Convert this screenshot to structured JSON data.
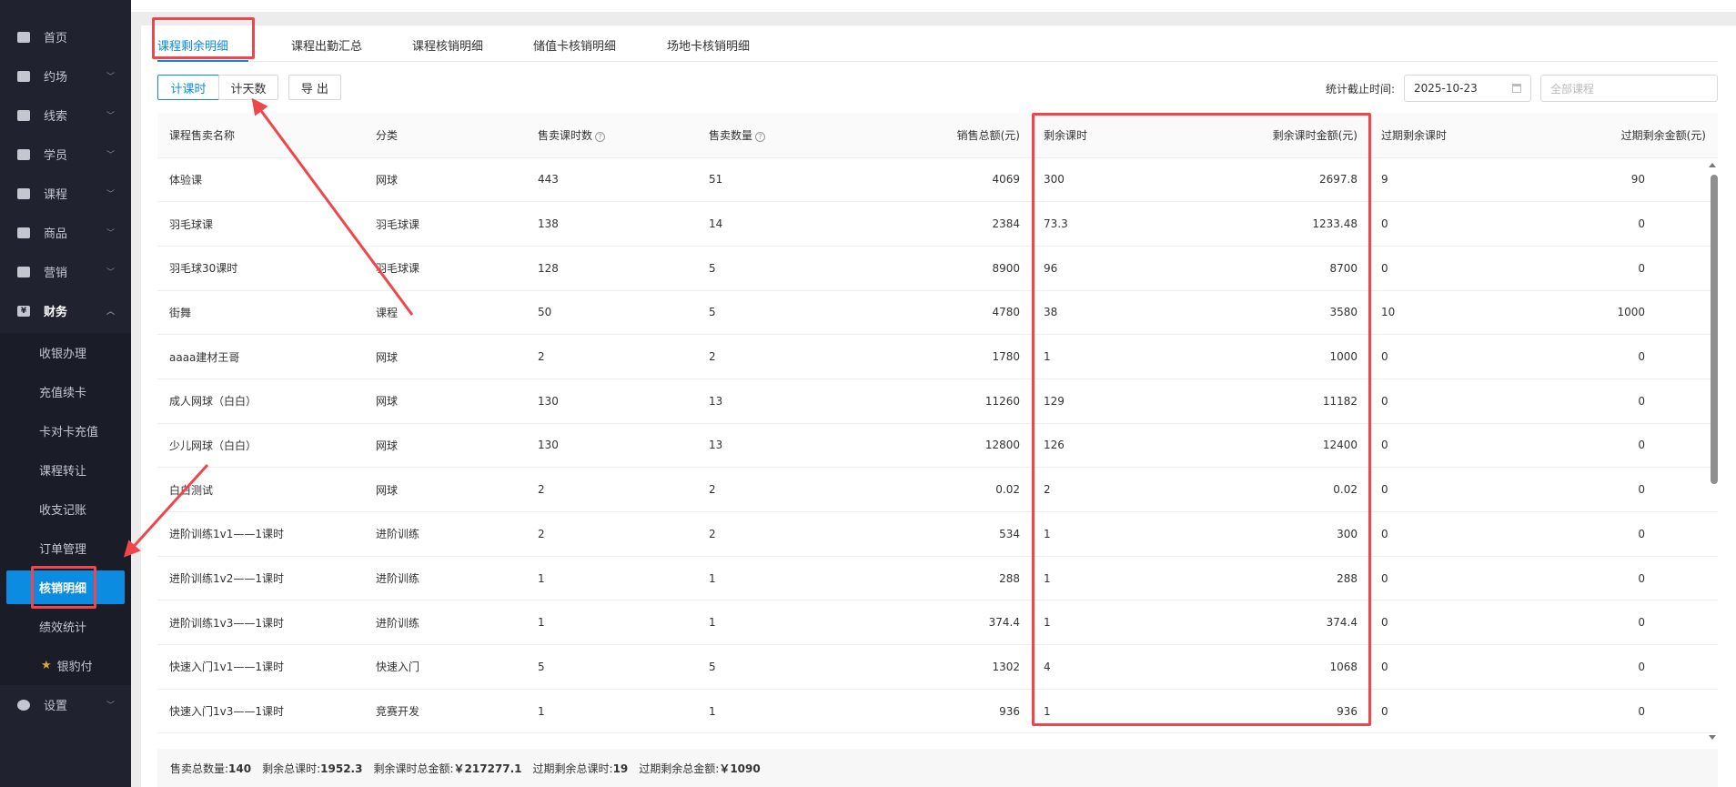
{
  "sidebar": {
    "items": [
      {
        "label": "首页",
        "icon": "home-icon"
      },
      {
        "label": "约场",
        "icon": "calendar-icon"
      },
      {
        "label": "线索",
        "icon": "users-icon"
      },
      {
        "label": "学员",
        "icon": "student-icon"
      },
      {
        "label": "课程",
        "icon": "book-icon"
      },
      {
        "label": "商品",
        "icon": "bag-icon"
      },
      {
        "label": "营销",
        "icon": "ticket-icon"
      },
      {
        "label": "财务",
        "icon": "yen-icon",
        "expanded": true
      }
    ],
    "finance_sub": [
      "收银办理",
      "充值续卡",
      "卡对卡充值",
      "课程转让",
      "收支记账",
      "订单管理",
      "核销明细",
      "绩效统计",
      "银豹付"
    ],
    "active_sub": "核销明细",
    "settings": {
      "label": "设置",
      "icon": "gear-icon"
    }
  },
  "tabs": [
    "课程剩余明细",
    "课程出勤汇总",
    "课程核销明细",
    "储值卡核销明细",
    "场地卡核销明细"
  ],
  "active_tab": "课程剩余明细",
  "toolbar": {
    "mode_hours": "计课时",
    "mode_days": "计天数",
    "export": "导 出",
    "date_label": "统计截止时间:",
    "date_value": "2025-10-23",
    "course_placeholder": "全部课程"
  },
  "table": {
    "headers": [
      "课程售卖名称",
      "分类",
      "售卖课时数",
      "售卖数量",
      "销售总额(元)",
      "剩余课时",
      "剩余课时金额(元)",
      "过期剩余课时",
      "过期剩余金额(元)"
    ],
    "rows": [
      [
        "体验课",
        "网球",
        "443",
        "51",
        "4069",
        "300",
        "2697.8",
        "9",
        "90"
      ],
      [
        "羽毛球课",
        "羽毛球课",
        "138",
        "14",
        "2384",
        "73.3",
        "1233.48",
        "0",
        "0"
      ],
      [
        "羽毛球30课时",
        "羽毛球课",
        "128",
        "5",
        "8900",
        "96",
        "8700",
        "0",
        "0"
      ],
      [
        "街舞",
        "课程",
        "50",
        "5",
        "4780",
        "38",
        "3580",
        "10",
        "1000"
      ],
      [
        "aaaa建材王哥",
        "网球",
        "2",
        "2",
        "1780",
        "1",
        "1000",
        "0",
        "0"
      ],
      [
        "成人网球（白白）",
        "网球",
        "130",
        "13",
        "11260",
        "129",
        "11182",
        "0",
        "0"
      ],
      [
        "少儿网球（白白）",
        "网球",
        "130",
        "13",
        "12800",
        "126",
        "12400",
        "0",
        "0"
      ],
      [
        "白白测试",
        "网球",
        "2",
        "2",
        "0.02",
        "2",
        "0.02",
        "0",
        "0"
      ],
      [
        "进阶训练1v1——1课时",
        "进阶训练",
        "2",
        "2",
        "534",
        "1",
        "300",
        "0",
        "0"
      ],
      [
        "进阶训练1v2——1课时",
        "进阶训练",
        "1",
        "1",
        "288",
        "1",
        "288",
        "0",
        "0"
      ],
      [
        "进阶训练1v3——1课时",
        "进阶训练",
        "1",
        "1",
        "374.4",
        "1",
        "374.4",
        "0",
        "0"
      ],
      [
        "快速入门1v1——1课时",
        "快速入门",
        "5",
        "5",
        "1302",
        "4",
        "1068",
        "0",
        "0"
      ],
      [
        "快速入门1v3——1课时",
        "竞赛开发",
        "1",
        "1",
        "936",
        "1",
        "936",
        "0",
        "0"
      ]
    ]
  },
  "footer": [
    {
      "label": "售卖总数量:",
      "value": "140"
    },
    {
      "label": "剩余总课时:",
      "value": "1952.3"
    },
    {
      "label": "剩余课时总金额:",
      "value": "￥217277.1"
    },
    {
      "label": "过期剩余总课时:",
      "value": "19"
    },
    {
      "label": "过期剩余总金额:",
      "value": "￥1090"
    }
  ],
  "colors": {
    "accent": "#0c8ce0",
    "annotation": "#f0464b",
    "sidebar": "#20222f"
  }
}
